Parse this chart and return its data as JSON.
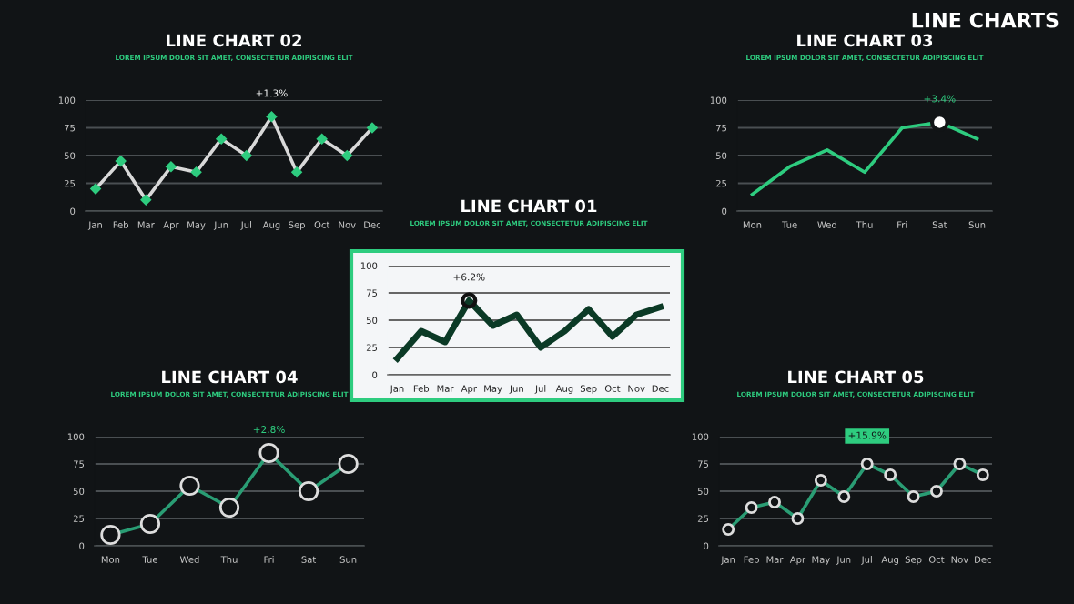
{
  "chart_data": [
    {
      "type": "line",
      "title": "LINE CHART 02",
      "subtitle": "LOREM IPSUM DOLOR SIT AMET, CONSECTETUR ADIPISCING ELIT",
      "categories": [
        "Jan",
        "Feb",
        "Mar",
        "Apr",
        "May",
        "Jun",
        "Jul",
        "Aug",
        "Sep",
        "Oct",
        "Nov",
        "Dec"
      ],
      "series": [
        {
          "color": "#d9d9d9",
          "values": [
            20,
            45,
            10,
            40,
            35,
            65,
            50,
            85,
            35,
            65,
            50,
            75
          ]
        }
      ],
      "ylim": [
        0,
        100
      ],
      "yticks": [
        0,
        25,
        50,
        75,
        100
      ],
      "grid": "y",
      "marker": "diamond",
      "line_style": "solid",
      "annotations": [
        {
          "text": "+1.3%",
          "x": "Aug",
          "y": 85
        }
      ]
    },
    {
      "type": "line",
      "title": "LINE CHART 03",
      "subtitle": "LOREM IPSUM DOLOR SIT AMET, CONSECTETUR ADIPISCING ELIT",
      "categories": [
        "Mon",
        "Tue",
        "Wed",
        "Thu",
        "Fri",
        "Sat",
        "Sun"
      ],
      "series": [
        {
          "color": "#2ecc7f",
          "values": [
            15,
            40,
            55,
            35,
            75,
            80,
            65
          ]
        }
      ],
      "ylim": [
        0,
        100
      ],
      "yticks": [
        0,
        25,
        50,
        75,
        100
      ],
      "grid": "y",
      "marker": "none",
      "line_style": "solid",
      "annotations": [
        {
          "text": "+3.4%",
          "x": "Sat",
          "y": 80
        }
      ]
    },
    {
      "type": "line",
      "title": "LINE CHART 01",
      "subtitle": "LOREM IPSUM DOLOR SIT AMET, CONSECTETUR ADIPISCING ELIT",
      "categories": [
        "Jan",
        "Feb",
        "Mar",
        "Apr",
        "May",
        "Jun",
        "Jul",
        "Aug",
        "Sep",
        "Oct",
        "Nov",
        "Dec"
      ],
      "series": [
        {
          "color": "#0b3a26",
          "values": [
            15,
            40,
            30,
            68,
            45,
            55,
            25,
            40,
            60,
            35,
            55,
            62
          ]
        }
      ],
      "ylim": [
        0,
        100
      ],
      "yticks": [
        0,
        25,
        50,
        75,
        100
      ],
      "grid": "y",
      "marker": "none",
      "line_style": "solid",
      "annotations": [
        {
          "text": "+6.2%",
          "x": "Apr",
          "y": 68
        }
      ]
    },
    {
      "type": "line",
      "title": "LINE CHART 04",
      "subtitle": "LOREM IPSUM DOLOR SIT AMET, CONSECTETUR ADIPISCING ELIT",
      "categories": [
        "Mon",
        "Tue",
        "Wed",
        "Thu",
        "Fri",
        "Sat",
        "Sun"
      ],
      "series": [
        {
          "color": "#2a9d74",
          "values": [
            10,
            20,
            55,
            35,
            85,
            50,
            75
          ]
        }
      ],
      "ylim": [
        0,
        100
      ],
      "yticks": [
        0,
        25,
        50,
        75,
        100
      ],
      "grid": "y",
      "marker": "circle",
      "line_style": "solid",
      "annotations": [
        {
          "text": "+2.8%",
          "x": "Fri",
          "y": 85
        }
      ]
    },
    {
      "type": "line",
      "title": "LINE CHART 05",
      "subtitle": "LOREM IPSUM DOLOR SIT AMET, CONSECTETUR ADIPISCING ELIT",
      "categories": [
        "Jan",
        "Feb",
        "Mar",
        "Apr",
        "May",
        "Jun",
        "Jul",
        "Aug",
        "Sep",
        "Oct",
        "Nov",
        "Dec"
      ],
      "series": [
        {
          "color": "#2a9d74",
          "values": [
            15,
            35,
            40,
            25,
            60,
            45,
            75,
            65,
            45,
            50,
            75,
            65
          ]
        }
      ],
      "ylim": [
        0,
        100
      ],
      "yticks": [
        0,
        25,
        50,
        75,
        100
      ],
      "grid": "y",
      "marker": "circle",
      "line_style": "solid",
      "annotations": [
        {
          "text": "+15.9%",
          "x": "Jul",
          "y": 75
        }
      ]
    },
    {
      "type": "other",
      "title": "LINE CHARTS"
    }
  ]
}
